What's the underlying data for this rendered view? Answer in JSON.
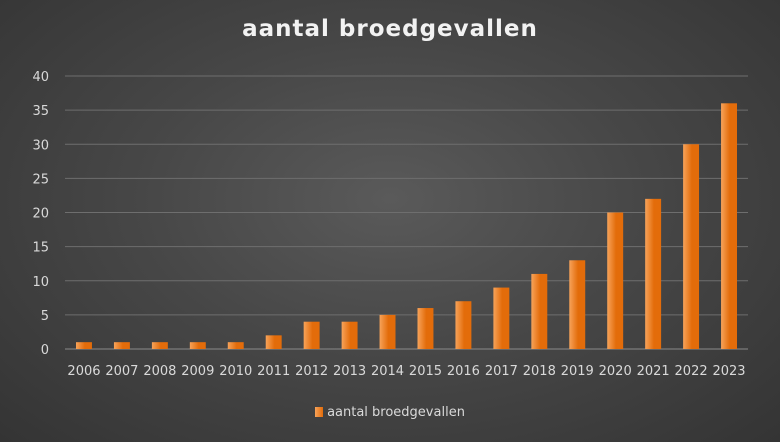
{
  "chart_data": {
    "type": "bar",
    "title": "aantal broedgevallen",
    "xlabel": "",
    "ylabel": "",
    "categories": [
      "2006",
      "2007",
      "2008",
      "2009",
      "2010",
      "2011",
      "2012",
      "2013",
      "2014",
      "2015",
      "2016",
      "2017",
      "2018",
      "2019",
      "2020",
      "2021",
      "2022",
      "2023"
    ],
    "series": [
      {
        "name": "aantal broedgevallen",
        "values": [
          1,
          1,
          1,
          1,
          1,
          2,
          4,
          4,
          5,
          6,
          7,
          9,
          11,
          13,
          20,
          22,
          30,
          36
        ]
      }
    ],
    "ylim": [
      0,
      40
    ],
    "yticks": [
      0,
      5,
      10,
      15,
      20,
      25,
      30,
      35,
      40
    ],
    "grid": true,
    "legend_position": "bottom",
    "colors": {
      "bar_light": "#f7a35a",
      "bar_dark": "#e36c0a",
      "grid": "#6e6e6e",
      "axis": "#8a8a8a"
    }
  }
}
